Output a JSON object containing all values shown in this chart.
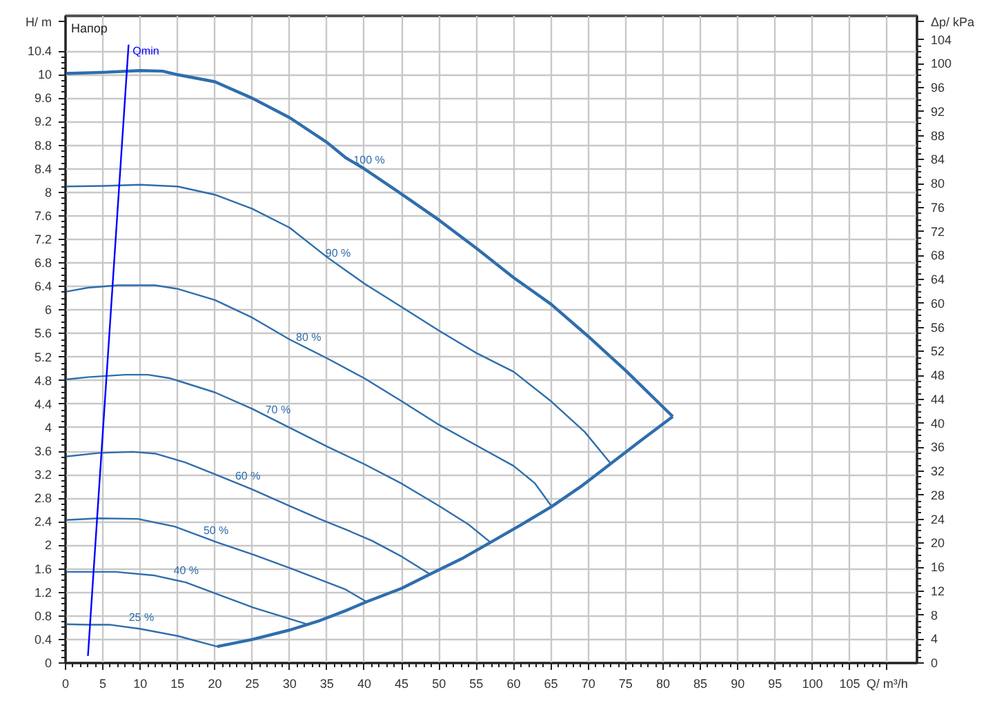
{
  "chart_data": {
    "type": "line",
    "annotations": [
      "Напор"
    ],
    "xlabel": "Q/ m³/h",
    "ylabel": "H/ m",
    "y2label": "Δp/ kPa",
    "xlim": [
      0,
      114
    ],
    "ylim": [
      0,
      11
    ],
    "y2lim": [
      0,
      108
    ],
    "xticks": [
      0,
      5,
      10,
      15,
      20,
      25,
      30,
      35,
      40,
      45,
      50,
      55,
      60,
      65,
      70,
      75,
      80,
      85,
      90,
      95,
      100,
      105
    ],
    "yticks": [
      0,
      0.4,
      0.8,
      1.2,
      1.6,
      2,
      2.4,
      2.8,
      3.2,
      3.6,
      4,
      4.4,
      4.8,
      5.2,
      5.6,
      6,
      6.4,
      6.8,
      7.2,
      7.6,
      8,
      8.4,
      8.8,
      9.2,
      9.6,
      10,
      10.4
    ],
    "y2ticks": [
      0,
      4,
      8,
      12,
      16,
      20,
      24,
      28,
      32,
      36,
      40,
      44,
      48,
      52,
      56,
      60,
      64,
      68,
      72,
      76,
      80,
      84,
      88,
      92,
      96,
      100,
      104
    ],
    "grid": true,
    "marker": "none",
    "line_style": "solid",
    "series": [
      {
        "name": "100 %",
        "color": "#2f6ead",
        "x": [
          0,
          5,
          10,
          13,
          15,
          20,
          25,
          30,
          35,
          37.5,
          40,
          45,
          50,
          55,
          60,
          65,
          70,
          75,
          81.3
        ],
        "values": [
          10.02,
          10.04,
          10.07,
          10.06,
          10.0,
          9.88,
          9.6,
          9.27,
          8.85,
          8.59,
          8.4,
          7.97,
          7.53,
          7.05,
          6.55,
          6.1,
          5.55,
          4.97,
          4.19
        ]
      },
      {
        "name": "90 %",
        "color": "#2f6ead",
        "x": [
          0,
          5,
          10,
          15,
          20,
          25,
          30,
          35,
          40,
          45,
          50,
          55,
          60,
          65,
          69.5,
          73
        ],
        "values": [
          8.1,
          8.11,
          8.13,
          8.1,
          7.96,
          7.72,
          7.4,
          6.9,
          6.45,
          6.05,
          5.65,
          5.27,
          4.95,
          4.45,
          3.93,
          3.39
        ]
      },
      {
        "name": "80 %",
        "color": "#2f6ead",
        "x": [
          0,
          3,
          7,
          12,
          15,
          20,
          25,
          30,
          35,
          40,
          45,
          50,
          55,
          60,
          62.8,
          65.1
        ],
        "values": [
          6.31,
          6.38,
          6.42,
          6.42,
          6.36,
          6.17,
          5.87,
          5.5,
          5.18,
          4.84,
          4.45,
          4.05,
          3.7,
          3.35,
          3.06,
          2.66
        ]
      },
      {
        "name": "70 %",
        "color": "#2f6ead",
        "x": [
          0,
          3,
          8,
          11,
          14,
          20,
          25,
          30,
          35,
          40,
          45,
          50,
          54,
          56.9
        ],
        "values": [
          4.82,
          4.86,
          4.9,
          4.9,
          4.84,
          4.6,
          4.32,
          4.0,
          3.68,
          3.38,
          3.05,
          2.67,
          2.35,
          2.05
        ]
      },
      {
        "name": "60 %",
        "color": "#2f6ead",
        "x": [
          0,
          4.4,
          9,
          12,
          16,
          20,
          25,
          30,
          34,
          37.5,
          41,
          45,
          48.8
        ],
        "values": [
          3.51,
          3.57,
          3.59,
          3.56,
          3.41,
          3.21,
          2.95,
          2.67,
          2.45,
          2.27,
          2.08,
          1.81,
          1.51
        ]
      },
      {
        "name": "50 %",
        "color": "#2f6ead",
        "x": [
          0,
          4.4,
          9.7,
          14.6,
          20.3,
          25.2,
          30.1,
          37.5,
          40.3
        ],
        "values": [
          2.43,
          2.46,
          2.45,
          2.32,
          2.05,
          1.84,
          1.61,
          1.25,
          1.04
        ]
      },
      {
        "name": "40 %",
        "color": "#2f6ead",
        "x": [
          0,
          6.7,
          11.8,
          16.1,
          20.3,
          25.2,
          32.3
        ],
        "values": [
          1.55,
          1.55,
          1.49,
          1.37,
          1.17,
          0.94,
          0.66
        ]
      },
      {
        "name": "25 %",
        "color": "#2f6ead",
        "x": [
          0,
          3,
          6,
          10,
          15,
          20.3
        ],
        "values": [
          0.66,
          0.65,
          0.65,
          0.58,
          0.46,
          0.28
        ]
      },
      {
        "color": "#2f6ead",
        "x": [
          20.3,
          25,
          30,
          33.8,
          37.5,
          40.3,
          45,
          48.8,
          53,
          56.9,
          61,
          65.1,
          69,
          73,
          77,
          81.3
        ],
        "values": [
          0.28,
          0.4,
          0.56,
          0.71,
          0.89,
          1.04,
          1.27,
          1.51,
          1.77,
          2.05,
          2.35,
          2.66,
          3.0,
          3.39,
          3.78,
          4.19
        ]
      },
      {
        "name": "Qmin",
        "color": "#0000ff",
        "x": [
          3.0,
          8.44
        ],
        "values": [
          0.12,
          10.51
        ]
      }
    ]
  }
}
